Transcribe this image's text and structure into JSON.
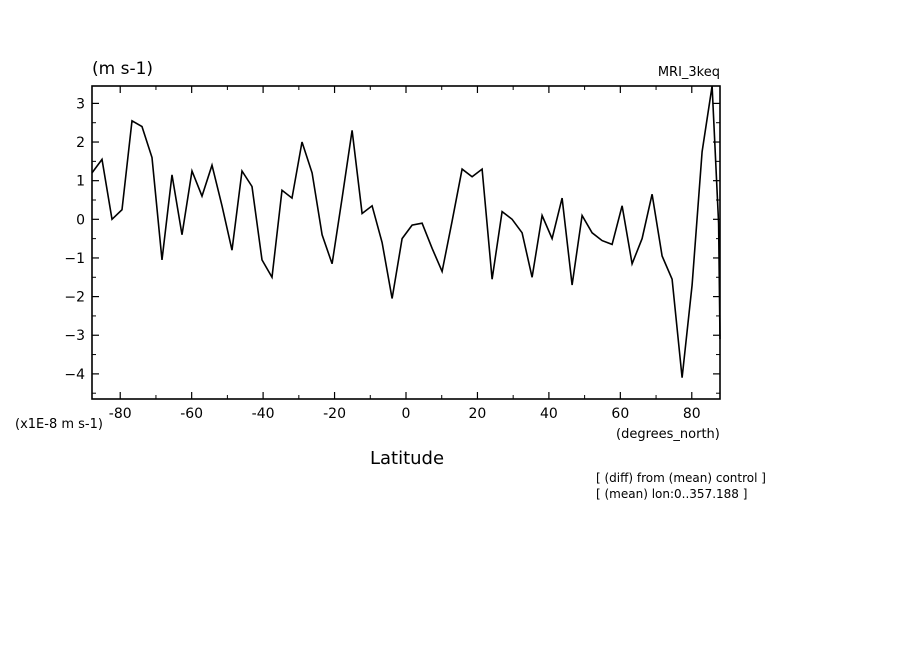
{
  "chart_data": {
    "type": "line",
    "units_label": "(m s-1)",
    "model_label": "MRI_3keq",
    "scale_label": "(x1E-8 m s-1)",
    "x_units_label": "(degrees_north)",
    "xlabel": "Latitude",
    "notes": [
      "[ (diff) from (mean) control ]",
      "[ (mean) lon:0..357.188 ]"
    ],
    "xlim": [
      -87.9,
      87.9
    ],
    "ylim": [
      -4.65,
      3.45
    ],
    "x_ticks": [
      -80,
      -60,
      -40,
      -20,
      0,
      20,
      40,
      60,
      80
    ],
    "x_tick_labels": [
      "-80",
      "-60",
      "-40",
      "-20",
      "0",
      "20",
      "40",
      "60",
      "80"
    ],
    "y_ticks": [
      3,
      2,
      1,
      0,
      -1,
      -2,
      -3,
      -4
    ],
    "y_tick_labels": [
      "3",
      "2",
      "1",
      "0",
      "−1",
      "−2",
      "−3",
      "−4"
    ],
    "series": [
      {
        "x": [
          -87.9,
          -85.1,
          -82.3,
          -79.5,
          -76.7,
          -73.9,
          -71.1,
          -68.3,
          -65.5,
          -62.7,
          -59.9,
          -57.1,
          -54.3,
          -51.5,
          -48.7,
          -45.9,
          -43.1,
          -40.3,
          -37.5,
          -34.7,
          -31.9,
          -29.1,
          -26.3,
          -23.5,
          -20.7,
          -17.9,
          -15.1,
          -12.3,
          -9.5,
          -6.7,
          -3.9,
          -1.1,
          1.7,
          4.5,
          7.3,
          10.1,
          12.9,
          15.7,
          18.5,
          21.3,
          24.1,
          26.9,
          29.7,
          32.5,
          35.3,
          38.1,
          40.9,
          43.7,
          46.5,
          49.3,
          52.1,
          54.9,
          57.7,
          60.5,
          63.3,
          66.1,
          68.9,
          71.7,
          74.5,
          77.3,
          80.1,
          82.9,
          85.7,
          87.5,
          87.9
        ],
        "y": [
          1.2,
          1.55,
          0.0,
          0.25,
          2.55,
          2.4,
          1.6,
          -1.05,
          1.15,
          -0.4,
          1.25,
          0.6,
          1.4,
          0.35,
          -0.8,
          1.25,
          0.85,
          -1.05,
          -1.5,
          0.75,
          0.55,
          2.0,
          1.2,
          -0.4,
          -1.15,
          0.55,
          2.3,
          0.15,
          0.35,
          -0.6,
          -2.05,
          -0.5,
          -0.15,
          -0.1,
          -0.75,
          -1.35,
          -0.05,
          1.3,
          1.1,
          1.3,
          -1.55,
          0.2,
          0.0,
          -0.35,
          -1.5,
          0.1,
          -0.5,
          0.55,
          -1.7,
          0.1,
          -0.35,
          -0.55,
          -0.65,
          0.35,
          -1.15,
          -0.5,
          0.65,
          -0.95,
          -1.55,
          -4.1,
          -1.7,
          1.75,
          3.45,
          -0.1,
          -3.1
        ]
      }
    ]
  }
}
